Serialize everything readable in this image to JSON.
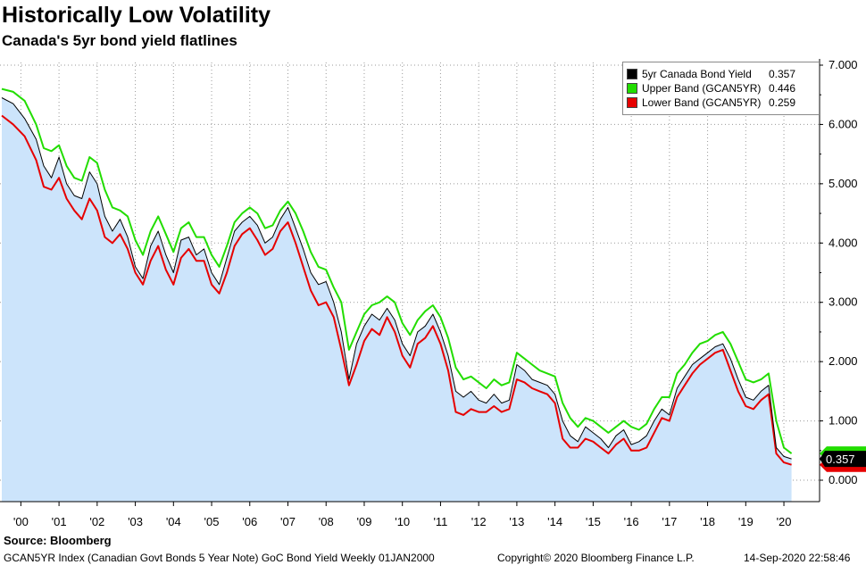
{
  "header": {
    "title": "Historically Low Volatility",
    "subtitle": "Canada's 5yr bond yield flatlines"
  },
  "footer": {
    "source": "Source: Bloomberg",
    "description": "GCAN5YR Index (Canadian Govt Bonds 5 Year Note) GoC Bond Yield  Weekly 01JAN2000",
    "copyright": "Copyright© 2020 Bloomberg Finance L.P.",
    "timestamp": "14-Sep-2020 22:58:46"
  },
  "legend": {
    "items": [
      {
        "name": "5yr Canada Bond Yield",
        "value": "0.357",
        "color": "#000000"
      },
      {
        "name": "Upper Band (GCAN5YR)",
        "value": "0.446",
        "color": "#22dd00"
      },
      {
        "name": "Lower Band (GCAN5YR)",
        "value": "0.259",
        "color": "#e60000"
      }
    ]
  },
  "last_price_tag": "0.357",
  "chart_data": {
    "type": "line",
    "title": "Historically Low Volatility",
    "subtitle": "Canada's 5yr bond yield flatlines",
    "xlabel": "",
    "ylabel": "",
    "ylim": [
      0,
      7
    ],
    "xlim": [
      2000.0,
      2020.85
    ],
    "y_ticks": [
      "0.000",
      "1.000",
      "2.000",
      "3.000",
      "4.000",
      "5.000",
      "6.000",
      "7.000"
    ],
    "x_ticks": [
      {
        "label": "'00",
        "x": 2000.5
      },
      {
        "label": "'01",
        "x": 2001.5
      },
      {
        "label": "'02",
        "x": 2002.5
      },
      {
        "label": "'03",
        "x": 2003.5
      },
      {
        "label": "'04",
        "x": 2004.5
      },
      {
        "label": "'05",
        "x": 2005.5
      },
      {
        "label": "'06",
        "x": 2006.5
      },
      {
        "label": "'07",
        "x": 2007.5
      },
      {
        "label": "'08",
        "x": 2008.5
      },
      {
        "label": "'09",
        "x": 2009.5
      },
      {
        "label": "'10",
        "x": 2010.5
      },
      {
        "label": "'11",
        "x": 2011.5
      },
      {
        "label": "'12",
        "x": 2012.5
      },
      {
        "label": "'13",
        "x": 2013.5
      },
      {
        "label": "'14",
        "x": 2014.5
      },
      {
        "label": "'15",
        "x": 2015.5
      },
      {
        "label": "'16",
        "x": 2016.5
      },
      {
        "label": "'17",
        "x": 2017.5
      },
      {
        "label": "'18",
        "x": 2018.5
      },
      {
        "label": "'19",
        "x": 2019.5
      },
      {
        "label": "'20",
        "x": 2020.5
      }
    ],
    "grid": true,
    "series": [
      {
        "name": "5yr Canada Bond Yield",
        "color": "#000000",
        "fill": "#cce4fb",
        "x": [
          2000.0,
          2000.3,
          2000.6,
          2000.9,
          2001.1,
          2001.3,
          2001.5,
          2001.7,
          2001.9,
          2002.1,
          2002.3,
          2002.5,
          2002.7,
          2002.9,
          2003.1,
          2003.3,
          2003.5,
          2003.7,
          2003.9,
          2004.1,
          2004.3,
          2004.5,
          2004.7,
          2004.9,
          2005.1,
          2005.3,
          2005.5,
          2005.7,
          2005.9,
          2006.1,
          2006.3,
          2006.5,
          2006.7,
          2006.9,
          2007.1,
          2007.3,
          2007.5,
          2007.7,
          2007.9,
          2008.1,
          2008.3,
          2008.5,
          2008.7,
          2008.9,
          2009.1,
          2009.3,
          2009.5,
          2009.7,
          2009.9,
          2010.1,
          2010.3,
          2010.5,
          2010.7,
          2010.9,
          2011.1,
          2011.3,
          2011.5,
          2011.7,
          2011.9,
          2012.1,
          2012.3,
          2012.5,
          2012.7,
          2012.9,
          2013.1,
          2013.3,
          2013.5,
          2013.7,
          2013.9,
          2014.1,
          2014.3,
          2014.5,
          2014.7,
          2014.9,
          2015.1,
          2015.3,
          2015.5,
          2015.7,
          2015.9,
          2016.1,
          2016.3,
          2016.5,
          2016.7,
          2016.9,
          2017.1,
          2017.3,
          2017.5,
          2017.7,
          2017.9,
          2018.1,
          2018.3,
          2018.5,
          2018.7,
          2018.9,
          2019.1,
          2019.3,
          2019.5,
          2019.7,
          2019.9,
          2020.1,
          2020.3,
          2020.5,
          2020.7
        ],
        "values": [
          6.45,
          6.35,
          6.1,
          5.75,
          5.3,
          5.1,
          5.45,
          5.0,
          4.8,
          4.75,
          5.2,
          5.0,
          4.45,
          4.2,
          4.4,
          4.1,
          3.6,
          3.4,
          3.95,
          4.2,
          3.8,
          3.5,
          4.05,
          4.1,
          3.8,
          3.9,
          3.5,
          3.3,
          3.75,
          4.2,
          4.35,
          4.45,
          4.3,
          4.0,
          4.1,
          4.4,
          4.6,
          4.25,
          3.9,
          3.5,
          3.3,
          3.35,
          3.0,
          2.5,
          1.7,
          2.3,
          2.6,
          2.8,
          2.7,
          2.9,
          2.7,
          2.3,
          2.1,
          2.5,
          2.6,
          2.8,
          2.5,
          2.1,
          1.5,
          1.4,
          1.5,
          1.35,
          1.3,
          1.45,
          1.3,
          1.35,
          1.95,
          1.85,
          1.7,
          1.65,
          1.6,
          1.45,
          1.0,
          0.75,
          0.65,
          0.9,
          0.8,
          0.7,
          0.55,
          0.75,
          0.85,
          0.6,
          0.65,
          0.75,
          1.0,
          1.2,
          1.1,
          1.55,
          1.75,
          1.95,
          2.05,
          2.15,
          2.25,
          2.3,
          2.05,
          1.7,
          1.4,
          1.35,
          1.5,
          1.6,
          0.55,
          0.4,
          0.36
        ]
      },
      {
        "name": "Upper Band (GCAN5YR)",
        "color": "#22dd00",
        "x": [
          2000.0,
          2000.3,
          2000.6,
          2000.9,
          2001.1,
          2001.3,
          2001.5,
          2001.7,
          2001.9,
          2002.1,
          2002.3,
          2002.5,
          2002.7,
          2002.9,
          2003.1,
          2003.3,
          2003.5,
          2003.7,
          2003.9,
          2004.1,
          2004.3,
          2004.5,
          2004.7,
          2004.9,
          2005.1,
          2005.3,
          2005.5,
          2005.7,
          2005.9,
          2006.1,
          2006.3,
          2006.5,
          2006.7,
          2006.9,
          2007.1,
          2007.3,
          2007.5,
          2007.7,
          2007.9,
          2008.1,
          2008.3,
          2008.5,
          2008.7,
          2008.9,
          2009.1,
          2009.3,
          2009.5,
          2009.7,
          2009.9,
          2010.1,
          2010.3,
          2010.5,
          2010.7,
          2010.9,
          2011.1,
          2011.3,
          2011.5,
          2011.7,
          2011.9,
          2012.1,
          2012.3,
          2012.5,
          2012.7,
          2012.9,
          2013.1,
          2013.3,
          2013.5,
          2013.7,
          2013.9,
          2014.1,
          2014.3,
          2014.5,
          2014.7,
          2014.9,
          2015.1,
          2015.3,
          2015.5,
          2015.7,
          2015.9,
          2016.1,
          2016.3,
          2016.5,
          2016.7,
          2016.9,
          2017.1,
          2017.3,
          2017.5,
          2017.7,
          2017.9,
          2018.1,
          2018.3,
          2018.5,
          2018.7,
          2018.9,
          2019.1,
          2019.3,
          2019.5,
          2019.7,
          2019.9,
          2020.1,
          2020.3,
          2020.5,
          2020.7
        ],
        "values": [
          6.6,
          6.55,
          6.4,
          6.0,
          5.6,
          5.55,
          5.65,
          5.3,
          5.1,
          5.05,
          5.45,
          5.35,
          4.9,
          4.6,
          4.55,
          4.45,
          4.05,
          3.8,
          4.2,
          4.45,
          4.15,
          3.85,
          4.25,
          4.35,
          4.1,
          4.1,
          3.8,
          3.6,
          3.95,
          4.35,
          4.5,
          4.6,
          4.5,
          4.25,
          4.3,
          4.55,
          4.7,
          4.5,
          4.2,
          3.85,
          3.6,
          3.55,
          3.25,
          3.0,
          2.2,
          2.5,
          2.8,
          2.95,
          3.0,
          3.1,
          3.0,
          2.65,
          2.45,
          2.7,
          2.85,
          2.95,
          2.75,
          2.4,
          1.9,
          1.7,
          1.75,
          1.65,
          1.55,
          1.7,
          1.6,
          1.65,
          2.15,
          2.05,
          1.95,
          1.85,
          1.8,
          1.75,
          1.3,
          1.05,
          0.9,
          1.05,
          1.0,
          0.9,
          0.8,
          0.9,
          1.0,
          0.9,
          0.85,
          0.95,
          1.2,
          1.4,
          1.4,
          1.8,
          1.95,
          2.15,
          2.3,
          2.35,
          2.45,
          2.5,
          2.3,
          2.0,
          1.7,
          1.65,
          1.7,
          1.8,
          1.0,
          0.55,
          0.45
        ]
      },
      {
        "name": "Lower Band (GCAN5YR)",
        "color": "#e60000",
        "x": [
          2000.0,
          2000.3,
          2000.6,
          2000.9,
          2001.1,
          2001.3,
          2001.5,
          2001.7,
          2001.9,
          2002.1,
          2002.3,
          2002.5,
          2002.7,
          2002.9,
          2003.1,
          2003.3,
          2003.5,
          2003.7,
          2003.9,
          2004.1,
          2004.3,
          2004.5,
          2004.7,
          2004.9,
          2005.1,
          2005.3,
          2005.5,
          2005.7,
          2005.9,
          2006.1,
          2006.3,
          2006.5,
          2006.7,
          2006.9,
          2007.1,
          2007.3,
          2007.5,
          2007.7,
          2007.9,
          2008.1,
          2008.3,
          2008.5,
          2008.7,
          2008.9,
          2009.1,
          2009.3,
          2009.5,
          2009.7,
          2009.9,
          2010.1,
          2010.3,
          2010.5,
          2010.7,
          2010.9,
          2011.1,
          2011.3,
          2011.5,
          2011.7,
          2011.9,
          2012.1,
          2012.3,
          2012.5,
          2012.7,
          2012.9,
          2013.1,
          2013.3,
          2013.5,
          2013.7,
          2013.9,
          2014.1,
          2014.3,
          2014.5,
          2014.7,
          2014.9,
          2015.1,
          2015.3,
          2015.5,
          2015.7,
          2015.9,
          2016.1,
          2016.3,
          2016.5,
          2016.7,
          2016.9,
          2017.1,
          2017.3,
          2017.5,
          2017.7,
          2017.9,
          2018.1,
          2018.3,
          2018.5,
          2018.7,
          2018.9,
          2019.1,
          2019.3,
          2019.5,
          2019.7,
          2019.9,
          2020.1,
          2020.3,
          2020.5,
          2020.7
        ],
        "values": [
          6.15,
          6.0,
          5.8,
          5.4,
          4.95,
          4.9,
          5.1,
          4.75,
          4.55,
          4.4,
          4.75,
          4.55,
          4.1,
          4.0,
          4.15,
          3.9,
          3.5,
          3.3,
          3.7,
          3.95,
          3.55,
          3.3,
          3.75,
          3.9,
          3.7,
          3.7,
          3.3,
          3.15,
          3.5,
          3.95,
          4.15,
          4.25,
          4.05,
          3.8,
          3.9,
          4.2,
          4.35,
          4.0,
          3.6,
          3.2,
          2.95,
          3.0,
          2.75,
          2.2,
          1.6,
          1.95,
          2.35,
          2.55,
          2.45,
          2.75,
          2.5,
          2.1,
          1.9,
          2.3,
          2.4,
          2.6,
          2.3,
          1.85,
          1.15,
          1.1,
          1.2,
          1.15,
          1.15,
          1.25,
          1.15,
          1.2,
          1.7,
          1.65,
          1.55,
          1.5,
          1.45,
          1.3,
          0.7,
          0.55,
          0.55,
          0.7,
          0.65,
          0.55,
          0.45,
          0.6,
          0.7,
          0.5,
          0.5,
          0.55,
          0.8,
          1.05,
          1.0,
          1.4,
          1.6,
          1.8,
          1.95,
          2.05,
          2.15,
          2.2,
          1.85,
          1.5,
          1.25,
          1.2,
          1.35,
          1.45,
          0.45,
          0.3,
          0.26
        ]
      }
    ]
  }
}
